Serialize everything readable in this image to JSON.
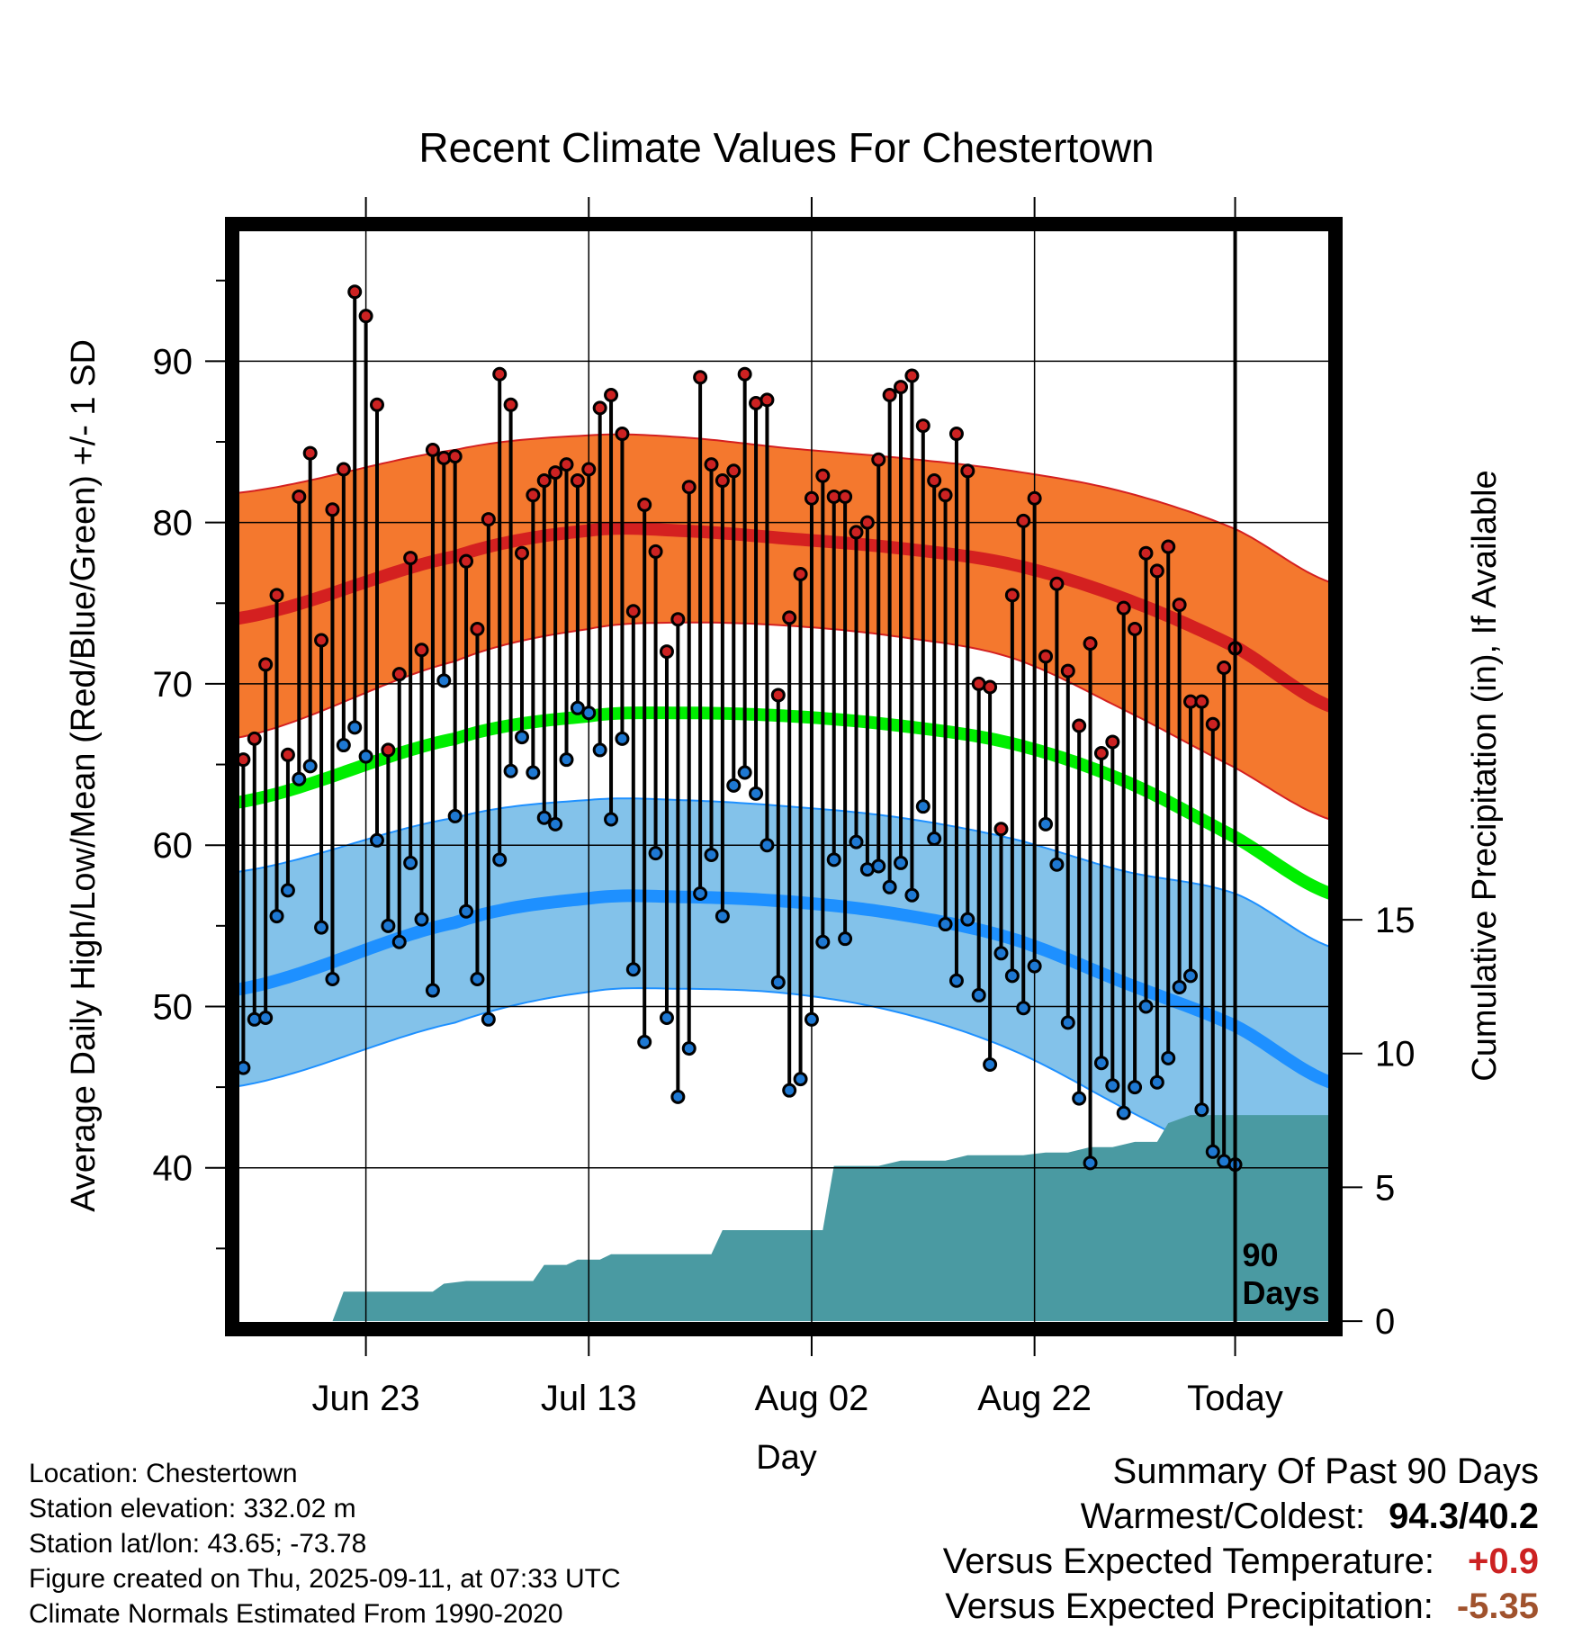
{
  "chart_data": {
    "type": "line",
    "title": "Recent Climate Values For Chestertown",
    "xlabel": "Day",
    "ylabel": "Average Daily High/Low/Mean (Red/Blue/Green) +/- 1 SD",
    "y2label": "Cumulative Precipitation (in), If Available",
    "xlim_days": [
      -90,
      9
    ],
    "ylim": [
      30,
      98.5
    ],
    "y2lim": [
      -0.3,
      41
    ],
    "x_ticks": [
      {
        "day": -78,
        "label": "Jun 23"
      },
      {
        "day": -58,
        "label": "Jul 13"
      },
      {
        "day": -38,
        "label": "Aug 02"
      },
      {
        "day": -18,
        "label": "Aug 22"
      },
      {
        "day": 0,
        "label": "Today"
      }
    ],
    "y_ticks": [
      40,
      50,
      60,
      70,
      80,
      90
    ],
    "y2_ticks": [
      0,
      5,
      10,
      15
    ],
    "marker_label": "90\nDays",
    "normal_high": {
      "mean": [
        [
          -90,
          74.0
        ],
        [
          -70,
          77.9
        ],
        [
          -58,
          79.5
        ],
        [
          -50,
          79.5
        ],
        [
          -40,
          79.0
        ],
        [
          -30,
          78.4
        ],
        [
          -20,
          77.4
        ],
        [
          -10,
          75.3
        ],
        [
          0,
          72.3
        ],
        [
          9,
          68.5
        ]
      ],
      "upper": [
        [
          -90,
          81.8
        ],
        [
          -70,
          84.5
        ],
        [
          -58,
          85.4
        ],
        [
          -50,
          85.3
        ],
        [
          -40,
          84.6
        ],
        [
          -30,
          84.0
        ],
        [
          -20,
          83.2
        ],
        [
          -10,
          81.9
        ],
        [
          0,
          79.6
        ],
        [
          9,
          76.2
        ]
      ],
      "lower": [
        [
          -90,
          66.6
        ],
        [
          -70,
          71.4
        ],
        [
          -58,
          73.4
        ],
        [
          -50,
          73.8
        ],
        [
          -40,
          73.6
        ],
        [
          -30,
          72.9
        ],
        [
          -20,
          71.6
        ],
        [
          -10,
          68.4
        ],
        [
          0,
          64.8
        ],
        [
          9,
          61.5
        ]
      ]
    },
    "normal_mean": [
      [
        -90,
        62.6
      ],
      [
        -70,
        66.6
      ],
      [
        -58,
        68.0
      ],
      [
        -50,
        68.2
      ],
      [
        -40,
        68.0
      ],
      [
        -30,
        67.4
      ],
      [
        -20,
        66.3
      ],
      [
        -10,
        64.0
      ],
      [
        0,
        60.5
      ],
      [
        9,
        56.9
      ]
    ],
    "normal_low": {
      "mean": [
        [
          -90,
          51.0
        ],
        [
          -70,
          55.2
        ],
        [
          -58,
          56.7
        ],
        [
          -50,
          56.8
        ],
        [
          -40,
          56.5
        ],
        [
          -30,
          55.7
        ],
        [
          -20,
          54.2
        ],
        [
          -10,
          51.5
        ],
        [
          0,
          48.8
        ],
        [
          9,
          45.2
        ]
      ],
      "upper": [
        [
          -90,
          58.3
        ],
        [
          -70,
          61.7
        ],
        [
          -58,
          62.8
        ],
        [
          -50,
          62.8
        ],
        [
          -40,
          62.4
        ],
        [
          -30,
          61.7
        ],
        [
          -20,
          60.4
        ],
        [
          -10,
          58.4
        ],
        [
          0,
          57.0
        ],
        [
          9,
          53.6
        ]
      ],
      "lower": [
        [
          -90,
          45.0
        ],
        [
          -70,
          49.0
        ],
        [
          -58,
          50.9
        ],
        [
          -50,
          51.1
        ],
        [
          -40,
          50.8
        ],
        [
          -30,
          49.6
        ],
        [
          -20,
          47.3
        ],
        [
          -10,
          43.7
        ],
        [
          0,
          40.0
        ],
        [
          9,
          35.5
        ]
      ]
    },
    "highs": [
      65.3,
      66.6,
      71.2,
      75.5,
      65.6,
      81.6,
      84.3,
      72.7,
      80.8,
      83.3,
      94.3,
      92.8,
      87.3,
      65.9,
      70.6,
      77.8,
      72.1,
      84.5,
      84.0,
      84.1,
      77.6,
      73.4,
      80.2,
      89.2,
      87.3,
      78.1,
      81.7,
      82.6,
      83.1,
      83.6,
      82.6,
      83.3,
      87.1,
      87.9,
      85.5,
      74.5,
      81.1,
      78.2,
      72.0,
      74.0,
      82.2,
      89.0,
      83.6,
      82.6,
      83.2,
      89.2,
      87.4,
      87.6,
      69.3,
      74.1,
      76.8,
      81.5,
      82.9,
      81.6,
      81.6,
      79.4,
      80.0,
      83.9,
      87.9,
      88.4,
      89.1,
      86.0,
      82.6,
      81.7,
      85.5,
      83.2,
      70.0,
      69.8,
      61.0,
      75.5,
      80.1,
      81.5,
      71.7,
      76.2,
      70.8,
      67.4,
      72.5,
      65.7,
      66.4,
      74.7,
      73.4,
      78.1,
      77.0,
      78.5,
      74.9,
      68.9,
      68.9,
      67.5,
      71.0,
      72.2
    ],
    "lows": [
      46.2,
      49.2,
      49.3,
      55.6,
      57.2,
      64.1,
      64.9,
      54.9,
      51.7,
      66.2,
      67.3,
      65.5,
      60.3,
      55.0,
      54.0,
      58.9,
      55.4,
      51.0,
      70.2,
      61.8,
      55.9,
      51.7,
      49.2,
      59.1,
      64.6,
      66.7,
      64.5,
      61.7,
      61.3,
      65.3,
      68.5,
      68.2,
      65.9,
      61.6,
      66.6,
      52.3,
      47.8,
      59.5,
      49.3,
      44.4,
      47.4,
      57.0,
      59.4,
      55.6,
      63.7,
      64.5,
      63.2,
      60.0,
      51.5,
      44.8,
      45.5,
      49.2,
      54.0,
      59.1,
      54.2,
      60.2,
      58.5,
      58.7,
      57.4,
      58.9,
      56.9,
      62.4,
      60.4,
      55.1,
      51.6,
      55.4,
      50.7,
      46.4,
      53.3,
      51.9,
      49.9,
      52.5,
      61.3,
      58.8,
      49.0,
      44.3,
      40.3,
      46.5,
      45.1,
      43.4,
      45.0,
      50.0,
      45.3,
      46.8,
      51.2,
      51.9,
      43.6,
      41.0,
      40.4,
      40.2
    ],
    "cumulative_precipitation": [
      [
        -90,
        0
      ],
      [
        -81,
        0
      ],
      [
        -80,
        1.1
      ],
      [
        -72,
        1.1
      ],
      [
        -71,
        1.4
      ],
      [
        -69,
        1.5
      ],
      [
        -63,
        1.5
      ],
      [
        -62,
        2.1
      ],
      [
        -60,
        2.1
      ],
      [
        -59,
        2.3
      ],
      [
        -57,
        2.3
      ],
      [
        -56,
        2.5
      ],
      [
        -47,
        2.5
      ],
      [
        -46,
        3.4
      ],
      [
        -37,
        3.4
      ],
      [
        -36,
        5.8
      ],
      [
        -32,
        5.8
      ],
      [
        -30,
        6.0
      ],
      [
        -26,
        6.0
      ],
      [
        -24,
        6.2
      ],
      [
        -19,
        6.2
      ],
      [
        -17,
        6.3
      ],
      [
        -15,
        6.3
      ],
      [
        -13,
        6.5
      ],
      [
        -11,
        6.5
      ],
      [
        -9,
        6.7
      ],
      [
        -7,
        6.7
      ],
      [
        -6,
        7.4
      ],
      [
        -4,
        7.7
      ],
      [
        0,
        7.7
      ],
      [
        9,
        7.7
      ]
    ],
    "grid": true,
    "colors": {
      "high_line": "#d42020",
      "high_band": "#f4782e",
      "mean_line": "#00ee00",
      "low_line": "#1e90ff",
      "low_band": "#83c2ea",
      "precip_fill": "#4a9aa2",
      "high_marker": "#cc2222",
      "low_marker": "#1e78d2"
    }
  },
  "footer": {
    "location": "Location: Chestertown",
    "elevation": "Station elevation: 332.02 m",
    "latlon": "Station lat/lon: 43.65; -73.78",
    "created": "Figure created on Thu, 2025-09-11, at 07:33 UTC",
    "normals": "Climate Normals Estimated From 1990-2020"
  },
  "summary": {
    "heading": "Summary Of Past 90 Days",
    "warmest_coldest_label": "Warmest/Coldest:",
    "warmest_coldest_value": "94.3/40.2",
    "temp_label": "Versus Expected Temperature:",
    "temp_value": "+0.9",
    "temp_color": "#cc2222",
    "precip_label": "Versus Expected Precipitation:",
    "precip_value": "-5.35",
    "precip_color": "#a0522d"
  }
}
